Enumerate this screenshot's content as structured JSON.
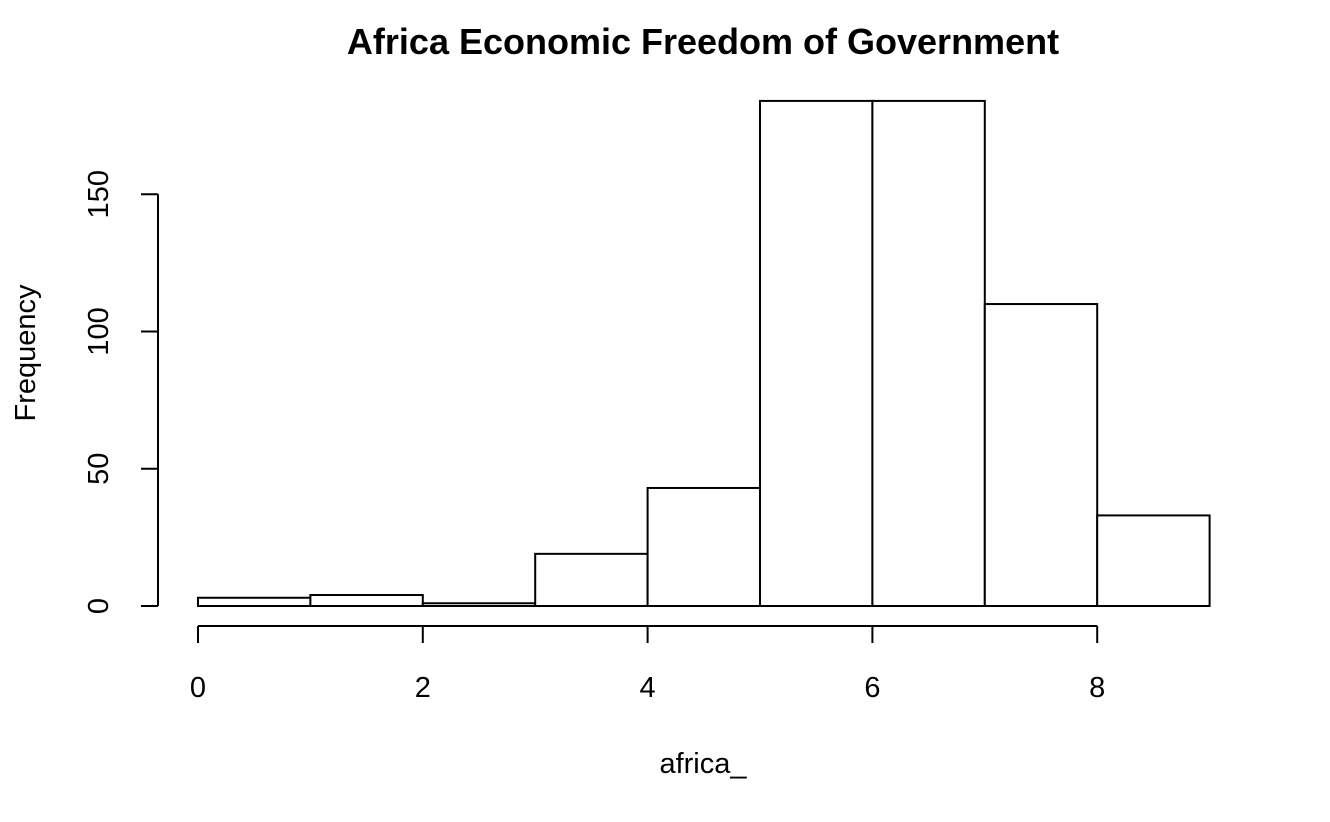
{
  "chart_data": {
    "type": "bar",
    "title": "Africa Economic Freedom of Government",
    "xlabel": "africa_",
    "ylabel": "Frequency",
    "bins": [
      {
        "start": 0,
        "end": 1,
        "count": 3
      },
      {
        "start": 1,
        "end": 2,
        "count": 4
      },
      {
        "start": 2,
        "end": 3,
        "count": 1
      },
      {
        "start": 3,
        "end": 4,
        "count": 19
      },
      {
        "start": 4,
        "end": 5,
        "count": 43
      },
      {
        "start": 5,
        "end": 6,
        "count": 184
      },
      {
        "start": 6,
        "end": 7,
        "count": 184
      },
      {
        "start": 7,
        "end": 8,
        "count": 110
      },
      {
        "start": 8,
        "end": 9,
        "count": 33
      }
    ],
    "x_ticks": [
      0,
      2,
      4,
      6,
      8
    ],
    "y_ticks": [
      0,
      50,
      100,
      150
    ],
    "xlim": [
      0,
      9
    ],
    "ylim": [
      0,
      184
    ],
    "grid": false,
    "colors": {
      "bar_fill": "#ffffff",
      "bar_stroke": "#000000"
    }
  }
}
